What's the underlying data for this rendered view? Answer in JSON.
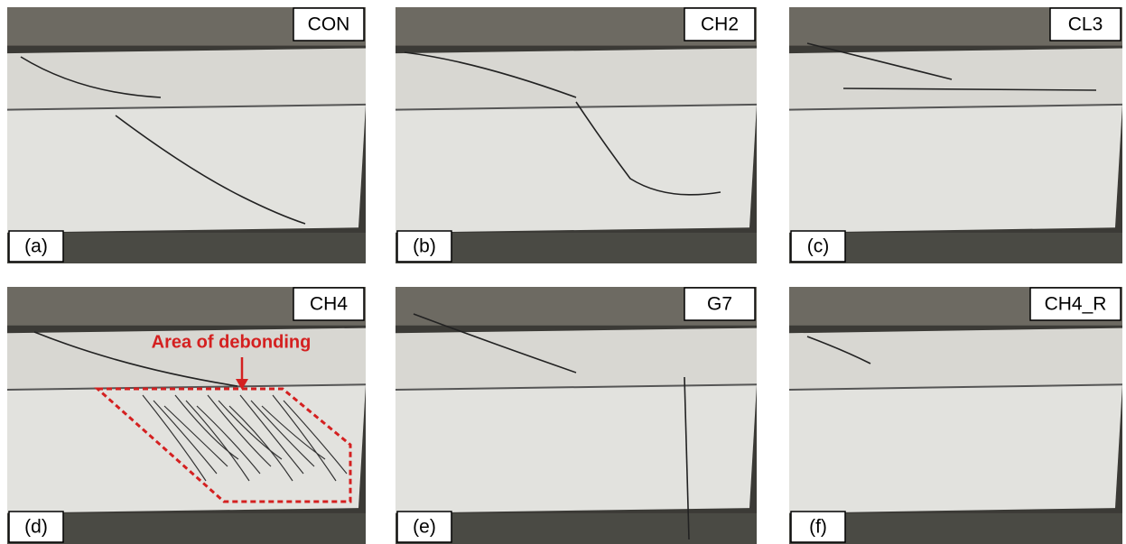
{
  "panels": [
    {
      "label": "(a)",
      "tag": "CON"
    },
    {
      "label": "(b)",
      "tag": "CH2"
    },
    {
      "label": "(c)",
      "tag": "CL3"
    },
    {
      "label": "(d)",
      "tag": "CH4",
      "annotation": "Area of debonding"
    },
    {
      "label": "(e)",
      "tag": "G7"
    },
    {
      "label": "(f)",
      "tag": "CH4_R"
    }
  ]
}
